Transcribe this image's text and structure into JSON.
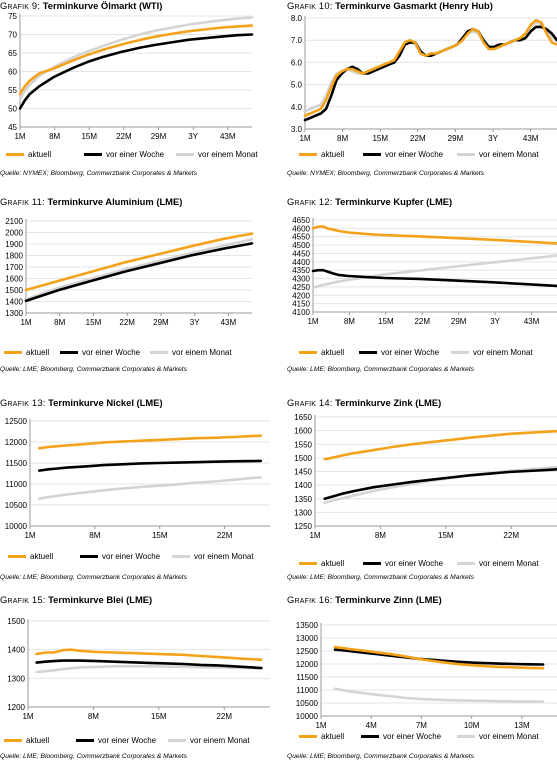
{
  "legend_labels": [
    "aktuell",
    "vor einer Woche",
    "vor einem Monat"
  ],
  "colors": {
    "aktuell": "#f5a21b",
    "woche": "#000000",
    "monat": "#d4d4d4",
    "grid": "#e4e4e4",
    "axis": "#999999"
  },
  "chart_data": [
    {
      "type": "line",
      "title_prefix": "Grafik 9:",
      "title_main": " Terminkurve Ölmarkt (WTI)",
      "source": "Quelle: NYMEX; Bloomberg, Commerzbank Corporates & Markets",
      "yticks": [
        "45",
        "50",
        "55",
        "60",
        "65",
        "70",
        "75"
      ],
      "ylim": [
        45,
        75
      ],
      "xticks": [
        "1M",
        "8M",
        "15M",
        "22M",
        "29M",
        "3Y",
        "43M"
      ],
      "x": [
        1,
        2,
        3,
        5,
        8,
        12,
        15,
        18,
        22,
        26,
        29,
        33,
        36,
        40,
        43,
        46,
        49
      ],
      "series": [
        {
          "name": "aktuell",
          "values": [
            54.0,
            56.0,
            57.5,
            59.5,
            60.8,
            63.0,
            64.5,
            65.8,
            67.3,
            68.6,
            69.4,
            70.3,
            70.9,
            71.5,
            71.9,
            72.2,
            72.4
          ]
        },
        {
          "name": "vor einer Woche",
          "values": [
            50.0,
            52.2,
            53.9,
            56.0,
            58.5,
            61.0,
            62.6,
            63.9,
            65.3,
            66.5,
            67.2,
            68.0,
            68.6,
            69.1,
            69.5,
            69.8,
            70.0
          ]
        },
        {
          "name": "vor einem Monat",
          "values": [
            52.5,
            54.8,
            56.4,
            58.8,
            61.2,
            63.8,
            65.4,
            66.8,
            68.6,
            70.1,
            71.0,
            72.0,
            72.7,
            73.4,
            73.9,
            74.3,
            74.6
          ]
        }
      ]
    },
    {
      "type": "line",
      "title_prefix": "Grafik 10:",
      "title_main": " Terminkurve Gasmarkt (Henry Hub)",
      "source": "Quelle: NYMEX; Bloomberg, Commerzbank Corporates & Markets",
      "yticks": [
        "3.0",
        "4.0",
        "5.0",
        "6.0",
        "7.0",
        "8.0"
      ],
      "ylim": [
        3.0,
        8.0
      ],
      "xticks": [
        "1M",
        "8M",
        "15M",
        "22M",
        "29M",
        "3Y",
        "43M"
      ],
      "x": [
        1,
        2,
        3,
        4,
        5,
        6,
        7,
        8,
        9,
        10,
        11,
        12,
        13,
        14,
        15,
        16,
        17,
        18,
        19,
        20,
        21,
        22,
        23,
        24,
        25,
        26,
        27,
        28,
        29,
        30,
        31,
        32,
        33,
        34,
        35,
        36,
        37,
        38,
        39,
        40,
        41,
        42,
        43,
        44,
        45,
        46,
        47,
        48,
        49
      ],
      "series": [
        {
          "name": "aktuell",
          "values": [
            3.6,
            3.7,
            3.8,
            3.9,
            4.3,
            4.9,
            5.4,
            5.6,
            5.7,
            5.7,
            5.6,
            5.5,
            5.6,
            5.7,
            5.8,
            5.9,
            6.0,
            6.1,
            6.5,
            6.9,
            7.0,
            6.9,
            6.4,
            6.3,
            6.4,
            6.4,
            6.5,
            6.6,
            6.7,
            6.8,
            7.0,
            7.3,
            7.5,
            7.4,
            6.9,
            6.6,
            6.6,
            6.7,
            6.8,
            6.9,
            7.0,
            7.1,
            7.3,
            7.7,
            7.9,
            7.8,
            7.3,
            6.9,
            6.8
          ]
        },
        {
          "name": "vor einer Woche",
          "values": [
            3.4,
            3.5,
            3.6,
            3.7,
            3.9,
            4.5,
            5.2,
            5.5,
            5.7,
            5.8,
            5.7,
            5.5,
            5.5,
            5.6,
            5.7,
            5.8,
            5.9,
            6.0,
            6.3,
            6.8,
            6.9,
            6.9,
            6.5,
            6.3,
            6.3,
            6.4,
            6.5,
            6.6,
            6.7,
            6.8,
            7.1,
            7.4,
            7.5,
            7.4,
            7.0,
            6.7,
            6.7,
            6.8,
            6.8,
            6.9,
            7.0,
            7.0,
            7.1,
            7.4,
            7.6,
            7.6,
            7.5,
            7.3,
            7.0
          ]
        },
        {
          "name": "vor einem Monat",
          "values": [
            3.8,
            3.9,
            4.0,
            4.1,
            4.5,
            5.1,
            5.5,
            5.6,
            5.7,
            5.6,
            5.5,
            5.5,
            5.6,
            5.7,
            5.8,
            5.9,
            6.0,
            6.1,
            6.5,
            6.8,
            6.9,
            6.8,
            6.4,
            6.3,
            6.4,
            6.4,
            6.5,
            6.6,
            6.7,
            6.8,
            7.0,
            7.3,
            7.4,
            7.3,
            6.9,
            6.7,
            6.7,
            6.7,
            6.8,
            6.9,
            7.0,
            7.1,
            7.3,
            7.6,
            7.8,
            7.7,
            7.4,
            7.1,
            7.0
          ]
        }
      ]
    },
    {
      "type": "line",
      "title_prefix": "Grafik 11:",
      "title_main": " Terminkurve Aluminium (LME)",
      "source": "Quelle: LME; Bloomberg, Commerzbank Corporates & Markets",
      "yticks": [
        "1300",
        "1400",
        "1500",
        "1600",
        "1700",
        "1800",
        "1900",
        "2000",
        "2100"
      ],
      "ylim": [
        1300,
        2100
      ],
      "xticks": [
        "1M",
        "8M",
        "15M",
        "22M",
        "29M",
        "3Y",
        "43M"
      ],
      "x": [
        1,
        8,
        15,
        22,
        29,
        36,
        43,
        49
      ],
      "series": [
        {
          "name": "aktuell",
          "values": [
            1500,
            1580,
            1660,
            1740,
            1810,
            1880,
            1945,
            1990
          ]
        },
        {
          "name": "vor einer Woche",
          "values": [
            1405,
            1500,
            1580,
            1660,
            1730,
            1800,
            1860,
            1905
          ]
        },
        {
          "name": "vor einem Monat",
          "values": [
            1420,
            1520,
            1600,
            1680,
            1750,
            1820,
            1885,
            1940
          ]
        }
      ]
    },
    {
      "type": "line",
      "title_prefix": "Grafik 12:",
      "title_main": " Terminkurve Kupfer (LME)",
      "source": "Quelle: LME; Bloomberg, Commerzbank Corporates & Markets",
      "yticks": [
        "4100",
        "4150",
        "4200",
        "4250",
        "4300",
        "4350",
        "4400",
        "4450",
        "4500",
        "4550",
        "4600",
        "4650"
      ],
      "ylim": [
        4100,
        4650
      ],
      "xticks": [
        "1M",
        "8M",
        "15M",
        "22M",
        "29M",
        "3Y",
        "43M"
      ],
      "x": [
        1,
        2,
        3,
        4,
        5,
        6,
        8,
        12,
        15,
        22,
        29,
        36,
        43,
        49
      ],
      "series": [
        {
          "name": "aktuell",
          "values": [
            4600,
            4610,
            4612,
            4598,
            4592,
            4585,
            4575,
            4565,
            4560,
            4552,
            4542,
            4532,
            4520,
            4510
          ]
        },
        {
          "name": "vor einer Woche",
          "values": [
            4345,
            4350,
            4350,
            4340,
            4330,
            4322,
            4315,
            4308,
            4303,
            4298,
            4288,
            4278,
            4266,
            4256
          ]
        },
        {
          "name": "vor einem Monat",
          "values": [
            4245,
            4255,
            4262,
            4268,
            4275,
            4282,
            4292,
            4310,
            4325,
            4348,
            4372,
            4395,
            4418,
            4438
          ]
        }
      ]
    },
    {
      "type": "line",
      "title_prefix": "Grafik 13:",
      "title_main": "  Terminkurve Nickel (LME)",
      "source": "Quelle: LME; Bloomberg, Commerzbank Corporates & Markets",
      "yticks": [
        "10000",
        "10500",
        "11000",
        "11500",
        "12000",
        "12500"
      ],
      "ylim": [
        10000,
        12500
      ],
      "xticks": [
        "1M",
        "8M",
        "15M",
        "22M"
      ],
      "x": [
        1,
        2,
        3,
        4,
        6,
        8,
        10,
        12,
        14,
        16,
        18,
        20,
        22,
        24,
        25
      ],
      "series": [
        {
          "name": "aktuell",
          "values": [
            11850,
            11880,
            11900,
            11920,
            11950,
            11990,
            12010,
            12030,
            12050,
            12070,
            12090,
            12100,
            12120,
            12140,
            12150
          ]
        },
        {
          "name": "vor einer Woche",
          "values": [
            11320,
            11350,
            11370,
            11390,
            11420,
            11450,
            11470,
            11490,
            11500,
            11510,
            11520,
            11530,
            11540,
            11545,
            11550
          ]
        },
        {
          "name": "vor einem Monat",
          "values": [
            10650,
            10690,
            10720,
            10750,
            10800,
            10850,
            10890,
            10930,
            10960,
            10990,
            11030,
            11060,
            11100,
            11140,
            11160
          ]
        }
      ]
    },
    {
      "type": "line",
      "title_prefix": "Grafik 14:",
      "title_main": " Terminkurve Zink (LME)",
      "source": "Quelle: LME; Bloomberg, Commerzbank Corporates & Markets",
      "yticks": [
        "1250",
        "1300",
        "1350",
        "1400",
        "1450",
        "1500",
        "1550",
        "1600",
        "1650"
      ],
      "ylim": [
        1250,
        1650
      ],
      "xticks": [
        "1M",
        "8M",
        "15M",
        "22M"
      ],
      "x": [
        1,
        2,
        3,
        4,
        6,
        8,
        10,
        12,
        14,
        16,
        18,
        20,
        22,
        24,
        25
      ],
      "series": [
        {
          "name": "aktuell",
          "values": [
            1495,
            1502,
            1510,
            1517,
            1528,
            1540,
            1550,
            1558,
            1566,
            1574,
            1581,
            1588,
            1592,
            1596,
            1598
          ]
        },
        {
          "name": "vor einer Woche",
          "values": [
            1350,
            1360,
            1370,
            1378,
            1392,
            1402,
            1412,
            1420,
            1428,
            1436,
            1442,
            1448,
            1452,
            1456,
            1458
          ]
        },
        {
          "name": "vor einem Monat",
          "values": [
            1335,
            1345,
            1353,
            1362,
            1378,
            1392,
            1405,
            1416,
            1426,
            1436,
            1444,
            1452,
            1458,
            1463,
            1466
          ]
        }
      ]
    },
    {
      "type": "line",
      "title_prefix": "Grafik 15:",
      "title_main": " Terminkurve Blei (LME)",
      "source": "Quelle: LME; Bloomberg, Commerzbank Corporates & Markets",
      "yticks": [
        "1200",
        "1300",
        "1400",
        "1500"
      ],
      "ylim": [
        1200,
        1500
      ],
      "xticks": [
        "1M",
        "8M",
        "15M",
        "22M"
      ],
      "x": [
        1,
        2,
        3,
        4,
        5,
        6,
        8,
        10,
        12,
        14,
        16,
        18,
        20,
        22,
        25,
        27
      ],
      "series": [
        {
          "name": "aktuell",
          "values": [
            1385,
            1390,
            1390,
            1398,
            1400,
            1396,
            1392,
            1390,
            1388,
            1386,
            1384,
            1382,
            1378,
            1374,
            1368,
            1365
          ]
        },
        {
          "name": "vor einer Woche",
          "values": [
            1355,
            1358,
            1360,
            1362,
            1362,
            1362,
            1360,
            1358,
            1356,
            1354,
            1352,
            1350,
            1347,
            1345,
            1340,
            1336
          ]
        },
        {
          "name": "vor einem Monat",
          "values": [
            1322,
            1325,
            1328,
            1332,
            1335,
            1338,
            1340,
            1342,
            1342,
            1342,
            1341,
            1340,
            1339,
            1338,
            1336,
            1334
          ]
        }
      ]
    },
    {
      "type": "line",
      "title_prefix": "Grafik 16:",
      "title_main": " Terminkurve Zinn (LME)",
      "source": "Quelle: LME; Bloomberg, Commerzbank Corporates & Markets",
      "yticks": [
        "10000",
        "10500",
        "11000",
        "11500",
        "12000",
        "12500",
        "13000",
        "13500"
      ],
      "ylim": [
        10000,
        13500
      ],
      "xticks": [
        "1M",
        "4M",
        "7M",
        "10M",
        "13M"
      ],
      "x": [
        1,
        1.5,
        2,
        3,
        4,
        5,
        6,
        7,
        8,
        9,
        10,
        11,
        12,
        13,
        14,
        15,
        16
      ],
      "series": [
        {
          "name": "aktuell",
          "values": [
            12650,
            12620,
            12580,
            12520,
            12450,
            12380,
            12300,
            12200,
            12120,
            12050,
            11990,
            11950,
            11910,
            11890,
            11870,
            11850,
            11840
          ]
        },
        {
          "name": "vor einer Woche",
          "values": [
            12550,
            12530,
            12500,
            12440,
            12380,
            12320,
            12260,
            12200,
            12160,
            12120,
            12080,
            12050,
            12030,
            12010,
            12000,
            11990,
            11980
          ]
        },
        {
          "name": "vor einem Monat",
          "values": [
            11050,
            11000,
            10950,
            10880,
            10820,
            10760,
            10700,
            10660,
            10630,
            10610,
            10600,
            10590,
            10580,
            10570,
            10560,
            10555,
            10550
          ]
        }
      ]
    }
  ]
}
